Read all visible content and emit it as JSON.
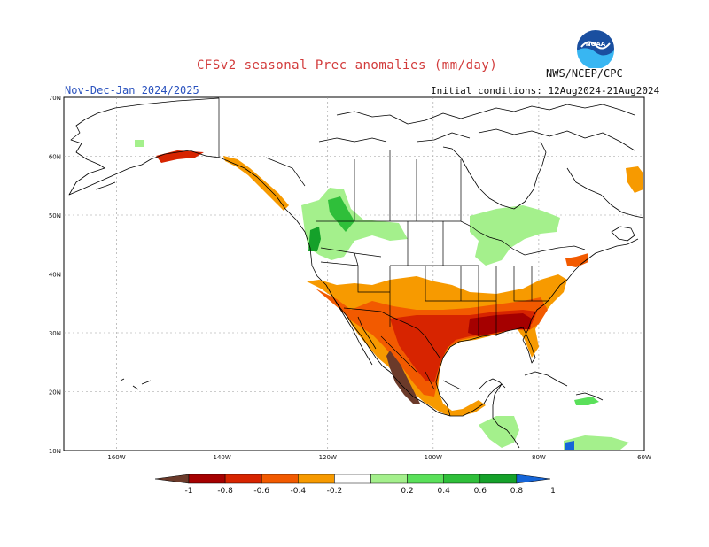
{
  "header": {
    "title": "CFSv2 seasonal Prec anomalies (mm/day)",
    "org": "NWS/NCEP/CPC",
    "season": "Nov-Dec-Jan 2024/2025",
    "initial_conditions": "Initial conditions: 12Aug2024-21Aug2024",
    "logo_text": "NOAA"
  },
  "map": {
    "lat_labels": [
      "70N",
      "60N",
      "50N",
      "40N",
      "30N",
      "20N",
      "10N"
    ],
    "lon_labels": [
      "160W",
      "140W",
      "120W",
      "100W",
      "80W",
      "60W"
    ],
    "lat_values": [
      70,
      60,
      50,
      40,
      30,
      20,
      10
    ],
    "lon_values": [
      -160,
      -140,
      -120,
      -100,
      -80,
      -60
    ],
    "extent": {
      "lon_min": -170,
      "lon_max": -60,
      "lat_min": 10,
      "lat_max": 70
    },
    "land_color": "#ffffff",
    "line_color": "#000000",
    "grid_color": "#999999"
  },
  "colorbar": {
    "labels": [
      "-1",
      "-0.8",
      "-0.6",
      "-0.4",
      "-0.2",
      "0.2",
      "0.4",
      "0.6",
      "0.8",
      "1"
    ],
    "colors": [
      "#6b3a2a",
      "#a50000",
      "#d72400",
      "#f25a00",
      "#f79a00",
      "#ffffff",
      "#a4f08c",
      "#5ae05a",
      "#2fbf3a",
      "#15a12a",
      "#1565d8"
    ],
    "left_arrow_color": "#6b3a2a",
    "right_arrow_color": "#1565d8"
  }
}
